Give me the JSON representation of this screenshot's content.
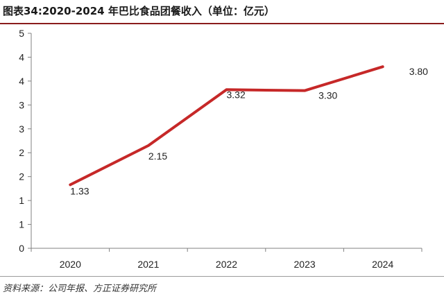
{
  "title": "图表34:2020-2024 年巴比食品团餐收入（单位：亿元）",
  "source": "资料来源：公司年报、方正证券研究所",
  "colors": {
    "line": "#c62828",
    "axis": "#808080",
    "rule": "#8a1c1c"
  },
  "chart_data": {
    "type": "line",
    "title": "",
    "xlabel": "",
    "ylabel": "",
    "categories": [
      "2020",
      "2021",
      "2022",
      "2023",
      "2024"
    ],
    "series": [
      {
        "values": [
          1.33,
          2.15,
          3.32,
          3.3,
          3.8
        ],
        "labels": [
          "1.33",
          "2.15",
          "3.32",
          "3.30",
          "3.80"
        ]
      }
    ],
    "ylim": [
      0,
      4.5
    ],
    "yticks": [
      0,
      0.5,
      1,
      1.5,
      2,
      2.5,
      3,
      3.5,
      4,
      4.5
    ],
    "ytick_labels": [
      "0",
      "1",
      "1",
      "2",
      "2",
      "3",
      "3",
      "4",
      "4",
      "5"
    ],
    "grid": false,
    "legend": "none"
  }
}
